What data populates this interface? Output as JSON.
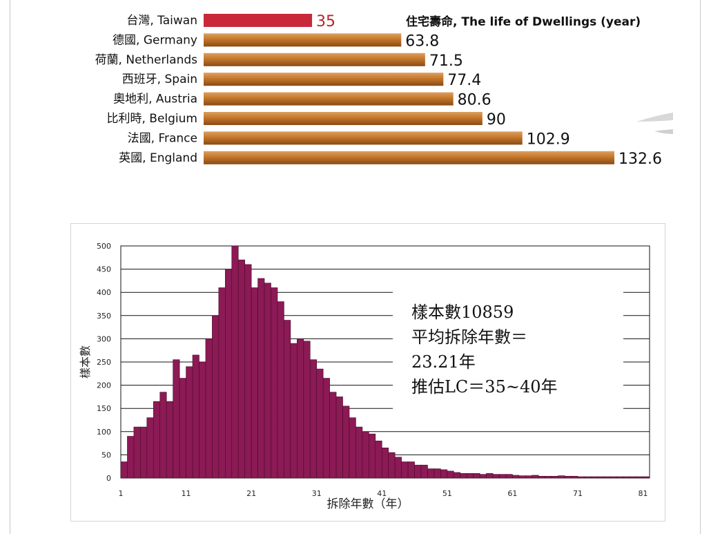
{
  "colors": {
    "taiwan_bar": "#c8283a",
    "taiwan_value": "#b8232f",
    "country_bar": "#c4772a",
    "country_bar_light": "#dca060",
    "country_bar_dark": "#8a4a14",
    "hist_bar": "#8b1a55",
    "hist_bar_edge": "#4a0a2a"
  },
  "chart_data": [
    {
      "type": "bar",
      "orientation": "horizontal",
      "title": "住宅壽命, The life of Dwellings (year)",
      "categories": [
        "台灣, Taiwan",
        "德國, Germany",
        "荷蘭, Netherlands",
        "西班牙, Spain",
        "奧地利, Austria",
        "比利時, Belgium",
        "法國, France",
        "英國, England"
      ],
      "values": [
        35,
        63.8,
        71.5,
        77.4,
        80.6,
        90,
        102.9,
        132.6
      ],
      "value_labels": [
        "35",
        "63.8",
        "71.5",
        "77.4",
        "80.6",
        "90",
        "102.9",
        "132.6"
      ],
      "highlight_index": 0,
      "xlim": [
        0,
        132.6
      ],
      "grid": false
    },
    {
      "type": "bar",
      "subtype": "histogram",
      "xlabel": "拆除年數（年）",
      "ylabel": "樣本數",
      "ylim": [
        0,
        500
      ],
      "y_ticks": [
        "0",
        "50",
        "100",
        "150",
        "200",
        "250",
        "300",
        "350",
        "400",
        "450",
        "500"
      ],
      "x_ticks": [
        "1",
        "11",
        "21",
        "31",
        "41",
        "51",
        "61",
        "71",
        "81"
      ],
      "x_start": 1,
      "grid": "horizontal",
      "annotation": [
        "樣本數10859",
        "平均拆除年數＝",
        "23.21年",
        "推估LC＝35~40年"
      ],
      "values": [
        35,
        90,
        110,
        110,
        130,
        165,
        185,
        165,
        255,
        215,
        240,
        265,
        250,
        300,
        350,
        410,
        450,
        500,
        470,
        460,
        410,
        430,
        420,
        410,
        380,
        340,
        290,
        300,
        295,
        255,
        235,
        215,
        185,
        175,
        155,
        130,
        110,
        100,
        95,
        80,
        65,
        55,
        45,
        35,
        35,
        28,
        28,
        20,
        20,
        18,
        15,
        12,
        10,
        10,
        10,
        8,
        10,
        8,
        8,
        8,
        6,
        5,
        5,
        6,
        4,
        4,
        4,
        5,
        4,
        4,
        3,
        3,
        3,
        3,
        3,
        3,
        3,
        3,
        3,
        3,
        3
      ]
    }
  ]
}
